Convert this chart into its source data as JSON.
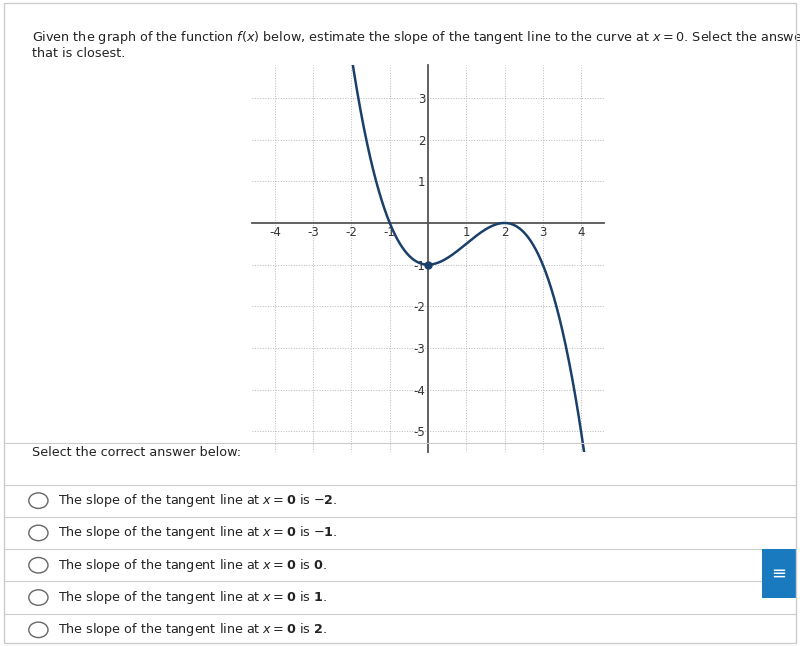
{
  "curve_color": "#1b3f6b",
  "curve_linewidth": 1.8,
  "xlim": [
    -4.6,
    4.6
  ],
  "ylim": [
    -5.5,
    3.8
  ],
  "xticks": [
    -4,
    -3,
    -2,
    -1,
    1,
    2,
    3,
    4
  ],
  "yticks": [
    -5,
    -4,
    -3,
    -2,
    -1,
    1,
    2,
    3
  ],
  "grid_color": "#b0b0b0",
  "axis_color": "#555555",
  "bg_color": "#ffffff",
  "fig_bg": "#ffffff",
  "point_color": "#1b3f6b",
  "select_text": "Select the correct answer below:",
  "answer_options": [
    "The slope of the tangent line at $x = \\mathbf{0}$ is $-\\mathbf{2}$.",
    "The slope of the tangent line at $x = \\mathbf{0}$ is $-\\mathbf{1}$.",
    "The slope of the tangent line at $x = \\mathbf{0}$ is $\\mathbf{0}$.",
    "The slope of the tangent line at $x = \\mathbf{0}$ is $\\mathbf{1}$.",
    "The slope of the tangent line at $x = \\mathbf{0}$ is $\\mathbf{2}$."
  ],
  "border_color": "#cccccc",
  "text_color": "#222222",
  "sidebar_color": "#1a7abf",
  "title_line1": "Given the graph of the function $f(x)$ below, estimate the slope of the tangent line to the curve at $x = 0$. Select the answer",
  "title_line2": "that is closest."
}
